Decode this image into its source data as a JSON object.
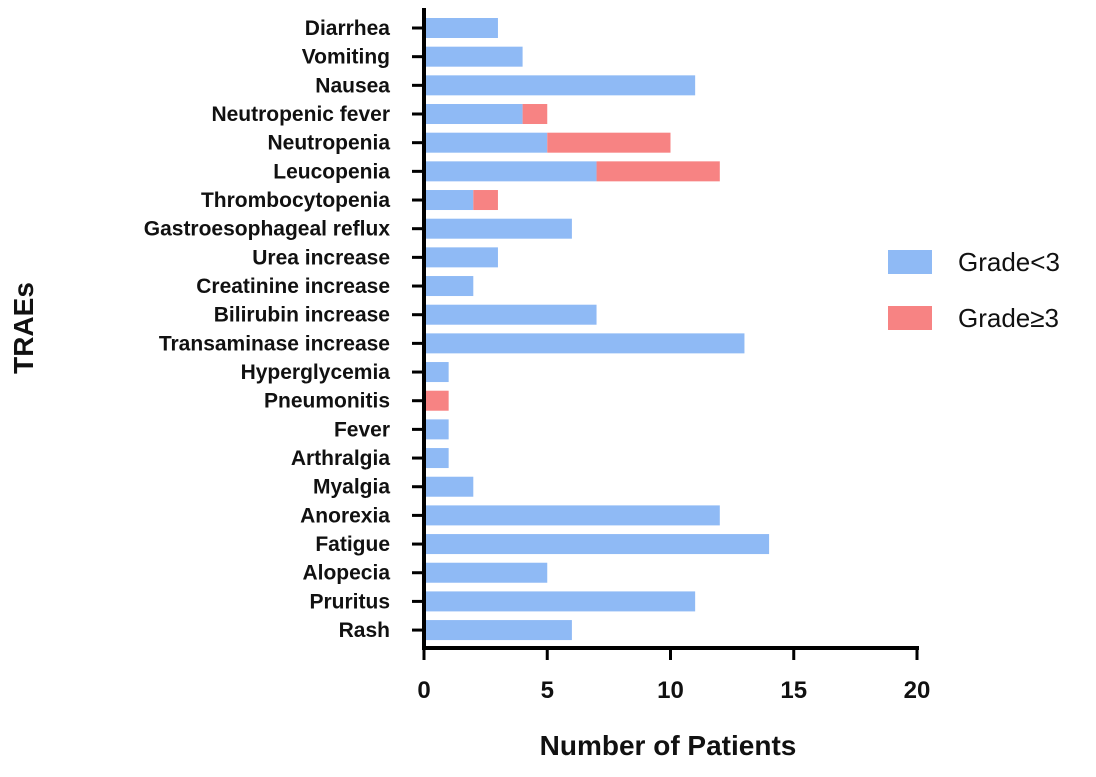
{
  "chart_data": {
    "type": "bar",
    "orientation": "horizontal",
    "stacked": true,
    "title": "",
    "xlabel": "Number of Patients",
    "ylabel": "TRAEs",
    "xlim": [
      0,
      20
    ],
    "xticks": [
      0,
      5,
      10,
      15,
      20
    ],
    "categories": [
      "Diarrhea",
      "Vomiting",
      "Nausea",
      "Neutropenic fever",
      "Neutropenia",
      "Leucopenia",
      "Thrombocytopenia",
      "Gastroesophageal reflux",
      "Urea increase",
      "Creatinine increase",
      "Bilirubin increase",
      "Transaminase increase",
      "Hyperglycemia",
      "Pneumonitis",
      "Fever",
      "Arthralgia",
      "Myalgia",
      "Anorexia",
      "Fatigue",
      "Alopecia",
      "Pruritus",
      "Rash"
    ],
    "series": [
      {
        "name": "Grade<3",
        "color": "#8fbaf5",
        "values": [
          3,
          4,
          11,
          4,
          5,
          7,
          2,
          6,
          3,
          2,
          7,
          13,
          1,
          0,
          1,
          1,
          2,
          12,
          14,
          5,
          11,
          6
        ]
      },
      {
        "name": "Grade≥3",
        "color": "#f78383",
        "values": [
          0,
          0,
          0,
          1,
          5,
          5,
          1,
          0,
          0,
          0,
          0,
          0,
          0,
          1,
          0,
          0,
          0,
          0,
          0,
          0,
          0,
          0
        ]
      }
    ],
    "grid": false,
    "legend_position": "right"
  }
}
